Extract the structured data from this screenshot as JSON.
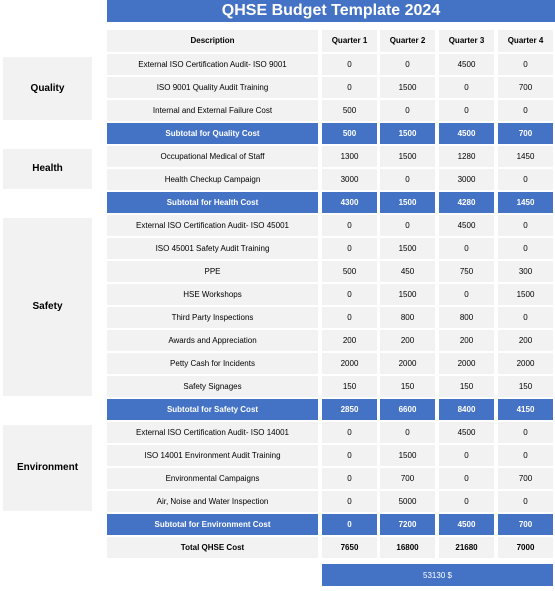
{
  "title": "QHSE Budget Template 2024",
  "headers": [
    "Description",
    "Quarter 1",
    "Quarter 2",
    "Quarter 3",
    "Quarter 4"
  ],
  "sections": [
    {
      "name": "Quality",
      "rows": [
        {
          "desc": "External ISO Certification Audit- ISO 9001",
          "q": [
            "0",
            "0",
            "4500",
            "0"
          ]
        },
        {
          "desc": "ISO 9001 Quality Audit Training",
          "q": [
            "0",
            "1500",
            "0",
            "700"
          ]
        },
        {
          "desc": "Internal and External Failure Cost",
          "q": [
            "500",
            "0",
            "0",
            "0"
          ]
        }
      ],
      "subtotal": {
        "label": "Subtotal for Quality Cost",
        "q": [
          "500",
          "1500",
          "4500",
          "700"
        ]
      }
    },
    {
      "name": "Health",
      "rows": [
        {
          "desc": "Occupational Medical of Staff",
          "q": [
            "1300",
            "1500",
            "1280",
            "1450"
          ]
        },
        {
          "desc": "Health Checkup Campaign",
          "q": [
            "3000",
            "0",
            "3000",
            "0"
          ]
        }
      ],
      "subtotal": {
        "label": "Subtotal for Health Cost",
        "q": [
          "4300",
          "1500",
          "4280",
          "1450"
        ]
      }
    },
    {
      "name": "Safety",
      "rows": [
        {
          "desc": "External ISO Certification Audit- ISO 45001",
          "q": [
            "0",
            "0",
            "4500",
            "0"
          ]
        },
        {
          "desc": "ISO 45001 Safety Audit Training",
          "q": [
            "0",
            "1500",
            "0",
            "0"
          ]
        },
        {
          "desc": "PPE",
          "q": [
            "500",
            "450",
            "750",
            "300"
          ]
        },
        {
          "desc": "HSE Workshops",
          "q": [
            "0",
            "1500",
            "0",
            "1500"
          ]
        },
        {
          "desc": "Third Party Inspections",
          "q": [
            "0",
            "800",
            "800",
            "0"
          ]
        },
        {
          "desc": "Awards and Appreciation",
          "q": [
            "200",
            "200",
            "200",
            "200"
          ]
        },
        {
          "desc": "Petty Cash for Incidents",
          "q": [
            "2000",
            "2000",
            "2000",
            "2000"
          ]
        },
        {
          "desc": "Safety Signages",
          "q": [
            "150",
            "150",
            "150",
            "150"
          ]
        }
      ],
      "subtotal": {
        "label": "Subtotal for Safety Cost",
        "q": [
          "2850",
          "6600",
          "8400",
          "4150"
        ]
      }
    },
    {
      "name": "Environment",
      "rows": [
        {
          "desc": "External ISO Certification Audit- ISO 14001",
          "q": [
            "0",
            "0",
            "4500",
            "0"
          ]
        },
        {
          "desc": "ISO 14001 Environment Audit Training",
          "q": [
            "0",
            "1500",
            "0",
            "0"
          ]
        },
        {
          "desc": "Environmental Campaigns",
          "q": [
            "0",
            "700",
            "0",
            "700"
          ]
        },
        {
          "desc": "Air, Noise and Water Inspection",
          "q": [
            "0",
            "5000",
            "0",
            "0"
          ]
        }
      ],
      "subtotal": {
        "label": "Subtotal for Environment Cost",
        "q": [
          "0",
          "7200",
          "4500",
          "700"
        ]
      }
    }
  ],
  "total": {
    "label": "Total QHSE Cost",
    "q": [
      "7650",
      "16800",
      "21680",
      "7000"
    ]
  },
  "grand_total": "53130 $",
  "colors": {
    "accent": "#4472c4",
    "cell_bg": "#f2f2f2"
  }
}
